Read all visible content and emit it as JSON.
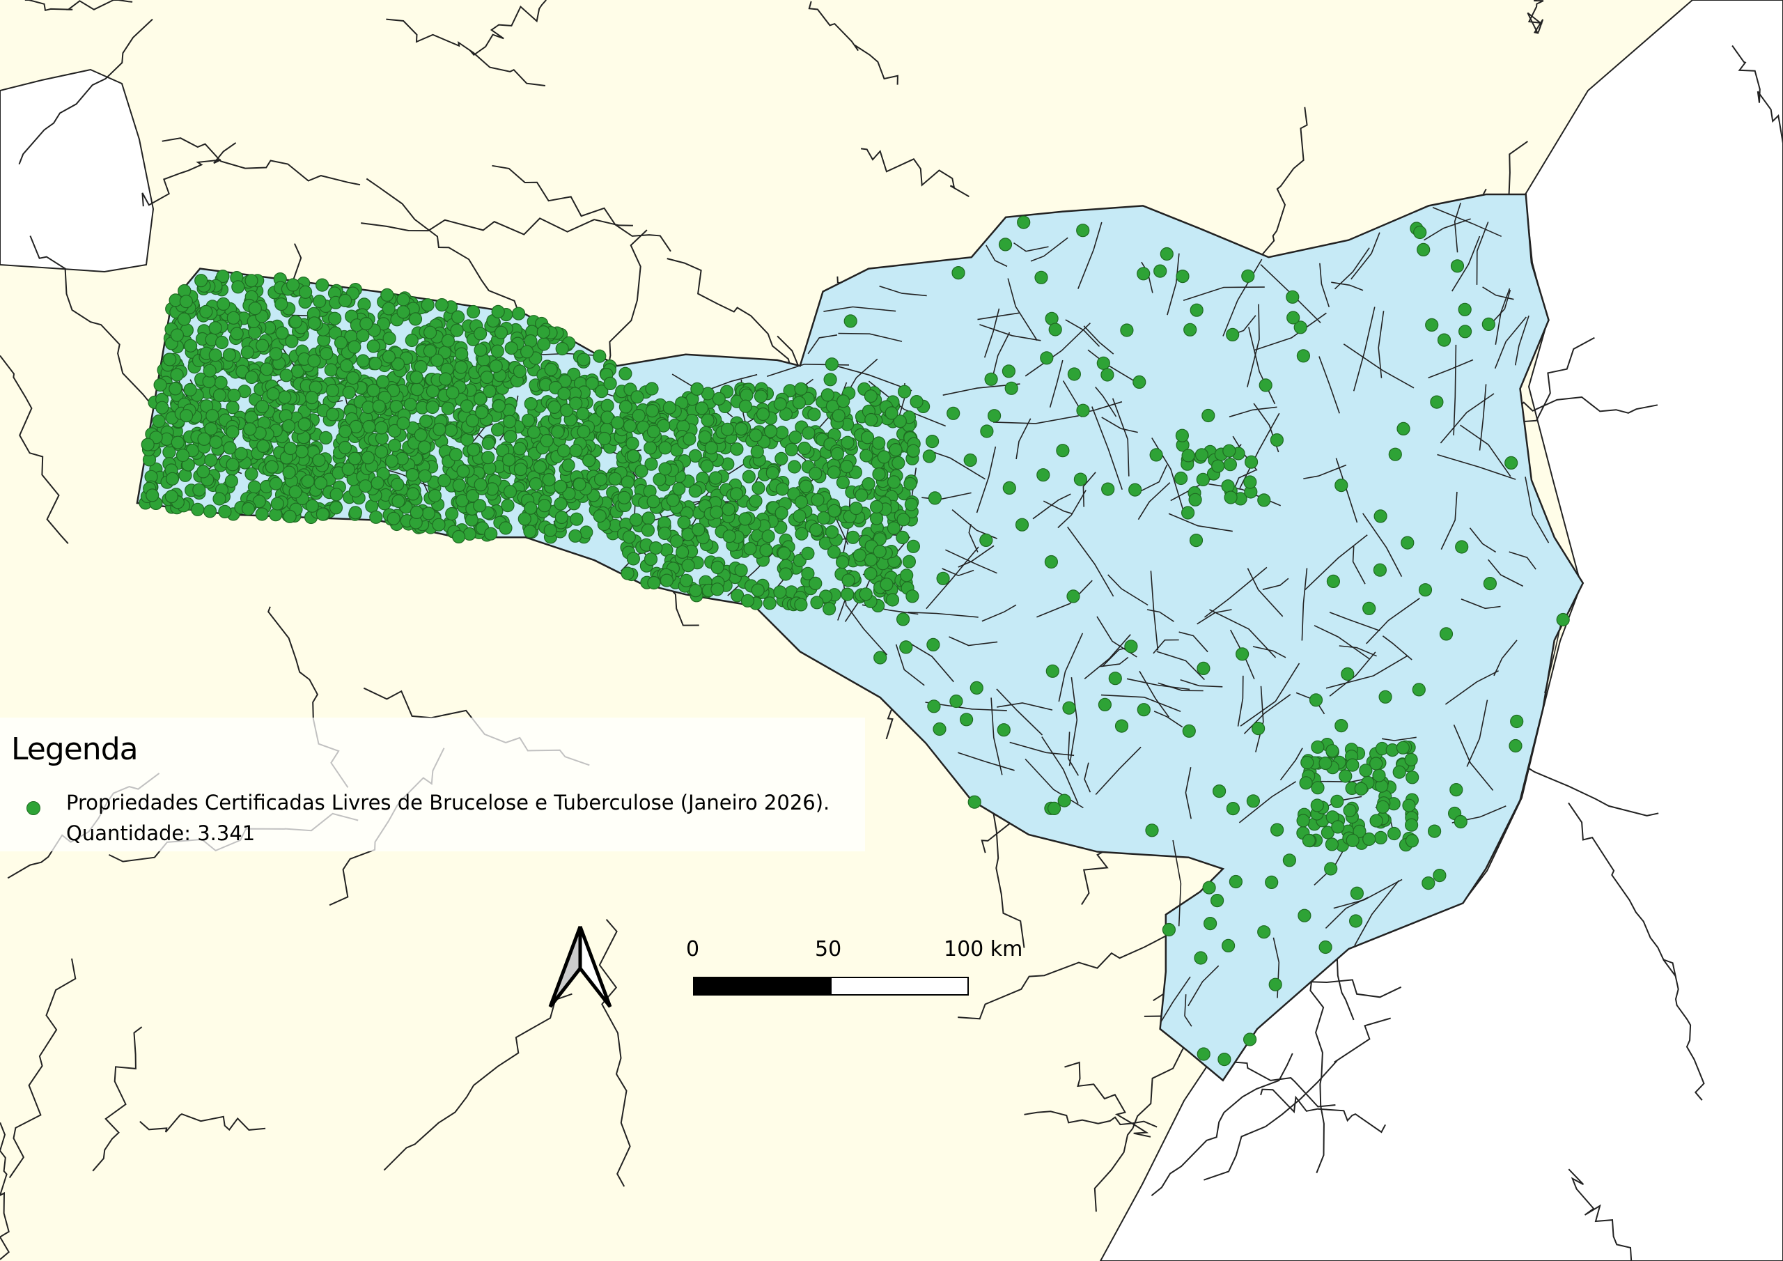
{
  "legend": {
    "title": "Legenda",
    "items": [
      {
        "label": "Propriedades Certificadas Livres de Brucelose e Tuberculose (Janeiro 2026).",
        "count_label": "Quantidade: 3.341",
        "symbol": "circle",
        "color": "#2ea336"
      }
    ]
  },
  "scale_bar": {
    "labels": [
      "0",
      "50",
      "100 km"
    ]
  },
  "north_arrow": {
    "icon": "north-arrow-icon"
  },
  "colors": {
    "background": "#fffde8",
    "highlighted_state": "#c6eaf6",
    "ocean": "#ffffff",
    "points": "#2ea336",
    "borders": "#222222"
  }
}
